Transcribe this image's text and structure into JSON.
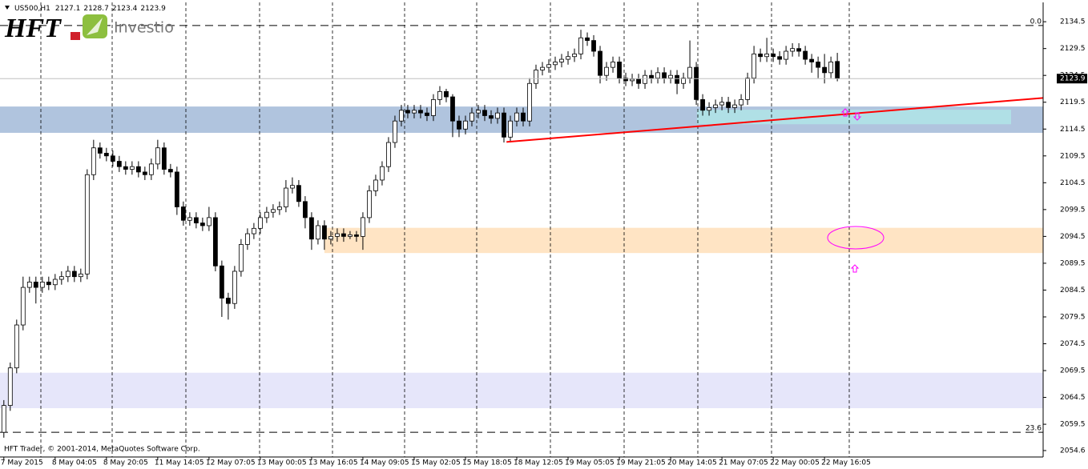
{
  "chart_data": {
    "type": "candlestick",
    "symbol": "US500,H1",
    "copyright": "HFT Trader, © 2001-2014, MetaQuotes Software Corp.",
    "logo": {
      "mark": "HFT",
      "name": "Investio"
    },
    "open": [
      2058,
      2063,
      2070,
      2078,
      2085,
      2086,
      2085,
      2086,
      2085.5,
      2086.5,
      2087,
      2088,
      2087,
      2087.5,
      2106,
      2111,
      2110,
      2109.5,
      2108.5,
      2107.5,
      2107,
      2107.5,
      2106.5,
      2106,
      2108,
      2111,
      2107,
      2106.5,
      2100,
      2097.5,
      2098,
      2097,
      2096.5,
      2098,
      2089,
      2083,
      2082,
      2088,
      2093,
      2095,
      2096,
      2098,
      2099,
      2099.5,
      2100,
      2103.5,
      2104,
      2101,
      2098,
      2094,
      2096.5,
      2094,
      2094.5,
      2095,
      2094.5,
      2094.8,
      2094.5,
      2098,
      2103,
      2105,
      2107.5,
      2112,
      2116,
      2118,
      2117.5,
      2118,
      2117.5,
      2117,
      2120,
      2121.5,
      2120.5,
      2116,
      2114.5,
      2116,
      2117.5,
      2118,
      2117,
      2116.5,
      2117.5,
      2113,
      2116,
      2117.5,
      2116,
      2123,
      2125.5,
      2126,
      2126.5,
      2127,
      2127.5,
      2128,
      2128.5,
      2131.5,
      2131,
      2129,
      2124.5,
      2126,
      2127,
      2124,
      2123.5,
      2123.8,
      2123,
      2124.5,
      2124,
      2125,
      2124,
      2124.5,
      2123,
      2124,
      2126,
      2120,
      2118,
      2118.5,
      2119,
      2119.5,
      2118.5,
      2119,
      2120,
      2124,
      2128.5,
      2128,
      2128.5,
      2128,
      2127.5,
      2129,
      2129.5,
      2129,
      2127.5,
      2127,
      2126,
      2125,
      2127.1
    ],
    "high": [
      2064,
      2071,
      2079,
      2087,
      2087,
      2087,
      2087,
      2087,
      2087.5,
      2088,
      2089,
      2089,
      2088.5,
      2107,
      2112.5,
      2112,
      2111,
      2110.5,
      2109.5,
      2108.5,
      2108.5,
      2108.5,
      2107.5,
      2109,
      2112.5,
      2112,
      2108,
      2107.5,
      2101,
      2099,
      2099,
      2098,
      2100,
      2099,
      2090,
      2084,
      2089,
      2094,
      2096,
      2097,
      2099,
      2100,
      2100.5,
      2101,
      2105,
      2105.5,
      2105,
      2102,
      2099,
      2097.5,
      2097.5,
      2095.5,
      2096,
      2096,
      2095.5,
      2095.5,
      2099,
      2104,
      2106,
      2108.5,
      2113,
      2117,
      2119,
      2119,
      2119,
      2119,
      2118.5,
      2121,
      2122.5,
      2122,
      2121,
      2117,
      2117,
      2118.5,
      2119,
      2119,
      2118,
      2118.5,
      2118.5,
      2117,
      2118.5,
      2118.5,
      2124,
      2126.5,
      2127,
      2127.5,
      2128,
      2128.5,
      2129,
      2129.5,
      2133,
      2132.5,
      2132,
      2130,
      2127,
      2128,
      2128,
      2125,
      2124.8,
      2124.8,
      2125.5,
      2125.5,
      2126,
      2126,
      2125.5,
      2125.5,
      2125,
      2131,
      2127,
      2121,
      2119.5,
      2120,
      2120.5,
      2120.5,
      2120,
      2121,
      2125,
      2130,
      2129.5,
      2131.5,
      2129.5,
      2129,
      2130,
      2130.5,
      2130.5,
      2130,
      2128.5,
      2128,
      2128.5,
      2128,
      2128.7
    ],
    "low": [
      2057,
      2062,
      2069,
      2077,
      2084,
      2082,
      2084,
      2084.5,
      2084.5,
      2085.5,
      2086,
      2086,
      2086,
      2086.5,
      2105,
      2109,
      2108.5,
      2107.5,
      2106.5,
      2106,
      2106,
      2105.5,
      2105,
      2105,
      2107,
      2106,
      2105.5,
      2098.5,
      2096.5,
      2096.5,
      2096,
      2095.5,
      2095.5,
      2088,
      2079.5,
      2079,
      2081,
      2087,
      2092,
      2094,
      2095,
      2097,
      2098,
      2098.5,
      2099,
      2102.5,
      2100,
      2096,
      2092,
      2093,
      2092,
      2093,
      2093.5,
      2093.5,
      2094,
      2093.5,
      2092,
      2097,
      2102,
      2104,
      2106.5,
      2111,
      2115,
      2116.5,
      2116.5,
      2116.5,
      2116,
      2116,
      2119,
      2119.5,
      2113,
      2113,
      2113.5,
      2115,
      2116.5,
      2116,
      2115.5,
      2115.5,
      2112,
      2112,
      2115,
      2115,
      2115,
      2122,
      2124.5,
      2125,
      2125.5,
      2126,
      2126.5,
      2127,
      2127.5,
      2130,
      2128,
      2123,
      2123.5,
      2125,
      2123,
      2122.5,
      2122.5,
      2122,
      2122,
      2123,
      2123,
      2123,
      2123,
      2121,
      2122,
      2123,
      2119,
      2117,
      2117,
      2117.5,
      2118,
      2117.5,
      2117.5,
      2118,
      2119,
      2123,
      2127,
      2127,
      2127,
      2126.5,
      2126.5,
      2128,
      2128,
      2126.5,
      2125,
      2124,
      2123,
      2124,
      2123.4
    ],
    "close": [
      2063,
      2070,
      2078,
      2085,
      2086,
      2085,
      2086,
      2085.5,
      2086.5,
      2087,
      2088,
      2087,
      2087.5,
      2106,
      2111,
      2110,
      2109.5,
      2108.5,
      2107.5,
      2107,
      2107.5,
      2106.5,
      2106,
      2108,
      2111,
      2107,
      2106.5,
      2100,
      2097.5,
      2098,
      2097,
      2096.5,
      2098,
      2089,
      2083,
      2082,
      2088,
      2093,
      2095,
      2096,
      2098,
      2099,
      2099.5,
      2100,
      2103.5,
      2104,
      2101,
      2098,
      2094,
      2096.5,
      2094,
      2094.5,
      2095,
      2094.5,
      2094.8,
      2094.5,
      2098,
      2103,
      2105,
      2107.5,
      2112,
      2116,
      2118,
      2117.5,
      2118,
      2117.5,
      2117,
      2120,
      2121.5,
      2120.5,
      2116,
      2114.5,
      2116,
      2117.5,
      2118,
      2117,
      2116.5,
      2117.5,
      2113,
      2116,
      2117.5,
      2116,
      2123,
      2125.5,
      2126,
      2126.5,
      2127,
      2127.5,
      2128,
      2128.5,
      2131.5,
      2131,
      2129,
      2124.5,
      2126,
      2127,
      2124,
      2123.5,
      2123.8,
      2123,
      2124.5,
      2124,
      2125,
      2124,
      2124.5,
      2123,
      2124,
      2126,
      2120,
      2118,
      2118.5,
      2119,
      2119.5,
      2118.5,
      2119,
      2120,
      2124,
      2128.5,
      2128,
      2128.5,
      2128,
      2127.5,
      2129,
      2129.5,
      2129,
      2127.5,
      2127,
      2126,
      2125,
      2127,
      2123.9
    ],
    "xlim": [
      -0.6,
      162.1
    ],
    "xticks": [
      {
        "value": 0,
        "label": "7 May 2015"
      },
      {
        "value": 8,
        "label": "8 May 04:05"
      },
      {
        "value": 16,
        "label": "8 May 20:05"
      },
      {
        "value": 24,
        "label": "11 May 14:05"
      },
      {
        "value": 32,
        "label": "12 May 07:05"
      },
      {
        "value": 40,
        "label": "13 May 00:05"
      },
      {
        "value": 48,
        "label": "13 May 16:05"
      },
      {
        "value": 56,
        "label": "14 May 09:05"
      },
      {
        "value": 64,
        "label": "15 May 02:05"
      },
      {
        "value": 72,
        "label": "15 May 18:05"
      },
      {
        "value": 80,
        "label": "18 May 12:05"
      },
      {
        "value": 88,
        "label": "19 May 05:05"
      },
      {
        "value": 96,
        "label": "19 May 21:05"
      },
      {
        "value": 104,
        "label": "20 May 14:05"
      },
      {
        "value": 112,
        "label": "21 May 07:05"
      },
      {
        "value": 120,
        "label": "22 May 00:05"
      },
      {
        "value": 128,
        "label": "22 May 16:05"
      }
    ],
    "ylim": [
      2053.4,
      2138.1
    ],
    "yticks": [
      2134.5,
      2129.5,
      2124.5,
      2119.5,
      2114.5,
      2109.5,
      2104.5,
      2099.5,
      2094.5,
      2089.5,
      2084.5,
      2079.5,
      2074.5,
      2069.5,
      2064.5,
      2059.5,
      2054.6
    ],
    "up_color": "#ffffff",
    "down_color": "#000000",
    "zones": [
      {
        "top": 2118.7,
        "bottom": 2113.8,
        "color": "#b0c4de"
      },
      {
        "top": 2118.1,
        "bottom": 2115.4,
        "start": 108.1,
        "end": 157.1,
        "color": "#b0e0e6"
      },
      {
        "top": 2096.1,
        "bottom": 2091.4,
        "start": 50,
        "color": "#ffe4c4"
      },
      {
        "top": 2069.1,
        "bottom": 2062.5,
        "color": "#e6e6fa"
      }
    ],
    "trendline": {
      "x": [
        78.4,
        162.1
      ],
      "y": [
        2112.1,
        2120.3
      ],
      "color": "#ff0000"
    },
    "fib_levels": [
      {
        "label": "0.0",
        "price": 2133.8
      },
      {
        "label": "23.6",
        "price": 2058.0
      }
    ]
  }
}
